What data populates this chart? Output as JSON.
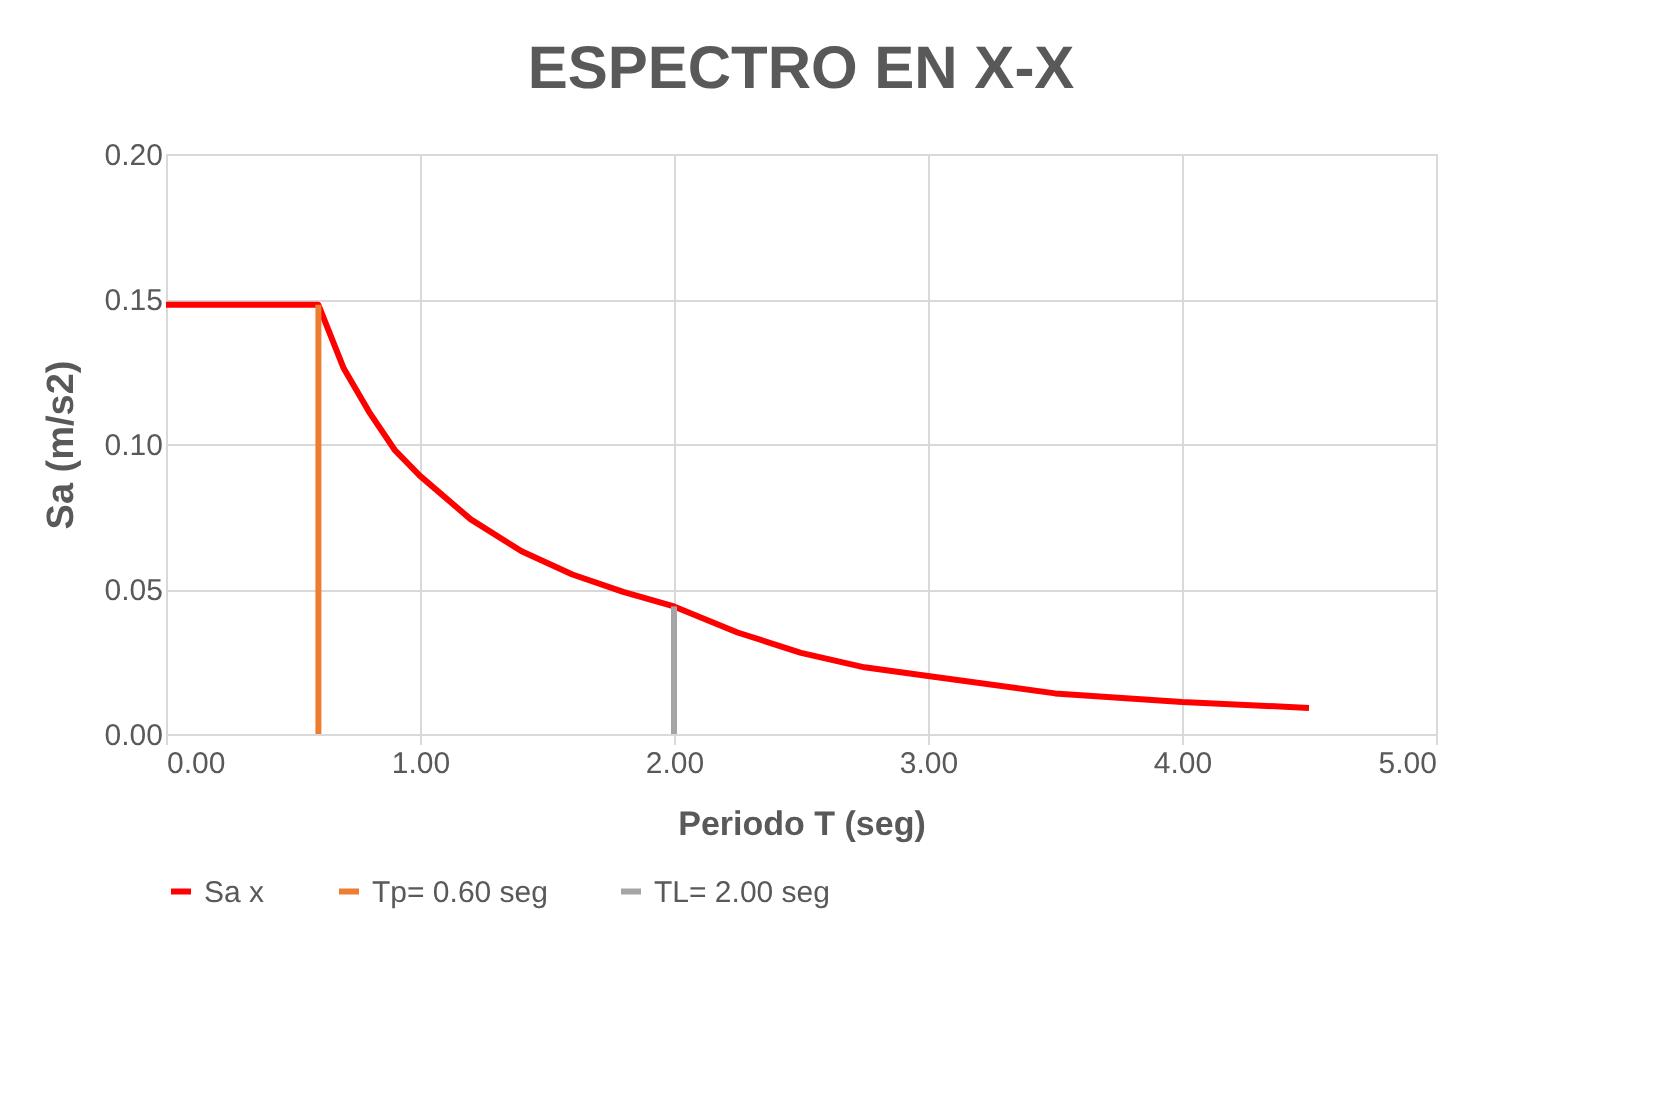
{
  "chart_data": {
    "type": "line",
    "title": "ESPECTRO EN X-X",
    "xlabel": "Periodo T (seg)",
    "ylabel": "Sa (m/s2)",
    "xlim": [
      0,
      5
    ],
    "ylim": [
      0,
      0.2
    ],
    "xticks": [
      {
        "value": 0,
        "label": "0.00"
      },
      {
        "value": 1,
        "label": "1.00"
      },
      {
        "value": 2,
        "label": "2.00"
      },
      {
        "value": 3,
        "label": "3.00"
      },
      {
        "value": 4,
        "label": "4.00"
      },
      {
        "value": 5,
        "label": "5.00"
      }
    ],
    "yticks": [
      {
        "value": 0,
        "label": "0.00"
      },
      {
        "value": 0.05,
        "label": "0.05"
      },
      {
        "value": 0.1,
        "label": "0.10"
      },
      {
        "value": 0.15,
        "label": "0.15"
      },
      {
        "value": 0.2,
        "label": "0.20"
      }
    ],
    "grid": true,
    "legend": "bottom",
    "marker": "none",
    "line_style": "solid",
    "series": [
      {
        "name": "Sa x",
        "color": "#ff0000",
        "x": [
          0,
          0.6,
          0.7,
          0.8,
          0.9,
          1.0,
          1.2,
          1.4,
          1.6,
          1.8,
          2.0,
          2.25,
          2.5,
          2.75,
          3.0,
          3.5,
          4.0,
          4.5
        ],
        "values": [
          0.148,
          0.148,
          0.126,
          0.111,
          0.098,
          0.089,
          0.074,
          0.063,
          0.055,
          0.049,
          0.044,
          0.035,
          0.028,
          0.023,
          0.02,
          0.014,
          0.011,
          0.009
        ]
      },
      {
        "name": "Tp= 0.60 seg",
        "color": "#ed7d31",
        "x": [
          0.6,
          0.6
        ],
        "values": [
          0,
          0.148
        ]
      },
      {
        "name": "TL= 2.00 seg",
        "color": "#a5a5a5",
        "x": [
          2.0,
          2.0
        ],
        "values": [
          0,
          0.044
        ]
      }
    ]
  }
}
